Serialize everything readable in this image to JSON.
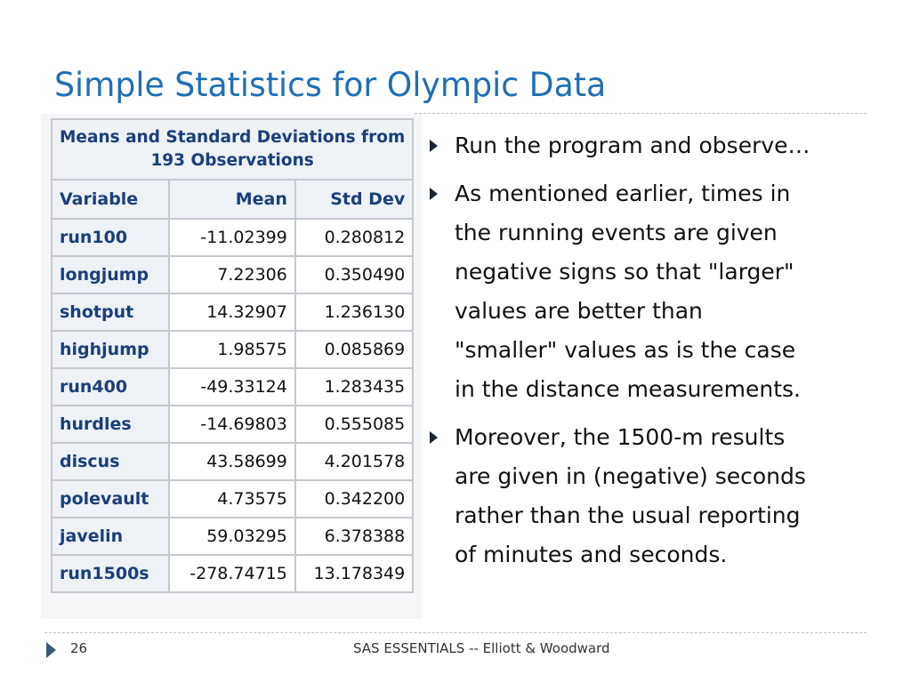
{
  "slide": {
    "title": "Simple Statistics for Olympic Data",
    "table": {
      "caption_line1": "Means and Standard Deviations from",
      "caption_line2": "193 Observations",
      "headers": [
        "Variable",
        "Mean",
        "Std Dev"
      ],
      "rows": [
        [
          "run100",
          "-11.02399",
          "0.280812"
        ],
        [
          "longjump",
          "7.22306",
          "0.350490"
        ],
        [
          "shotput",
          "14.32907",
          "1.236130"
        ],
        [
          "highjump",
          "1.98575",
          "0.085869"
        ],
        [
          "run400",
          "-49.33124",
          "1.283435"
        ],
        [
          "hurdles",
          "-14.69803",
          "0.555085"
        ],
        [
          "discus",
          "43.58699",
          "4.201578"
        ],
        [
          "polevault",
          "4.73575",
          "0.342200"
        ],
        [
          "javelin",
          "59.03295",
          "6.378388"
        ],
        [
          "run1500s",
          "-278.74715",
          "13.178349"
        ]
      ]
    },
    "bullets": [
      {
        "lines": [
          "Run the program and observe…"
        ]
      },
      {
        "lines": [
          "As mentioned earlier, times in",
          "the running events are given",
          "negative signs so that \"larger\"",
          "values are better than",
          "\"smaller\" values as is the case",
          "in the distance measurements."
        ]
      },
      {
        "lines": [
          "Moreover, the 1500-m results",
          "are given in (negative) seconds",
          "rather than the usual reporting",
          "of minutes and seconds."
        ]
      }
    ]
  },
  "footer": {
    "page_number": "26",
    "text": "SAS ESSENTIALS -- Elliott & Woodward"
  },
  "colors": {
    "title": "#1f6fb5",
    "table_header_text": "#1a3f7a",
    "table_header_bg": "#eef1f6",
    "table_border": "#c5c9cf"
  }
}
